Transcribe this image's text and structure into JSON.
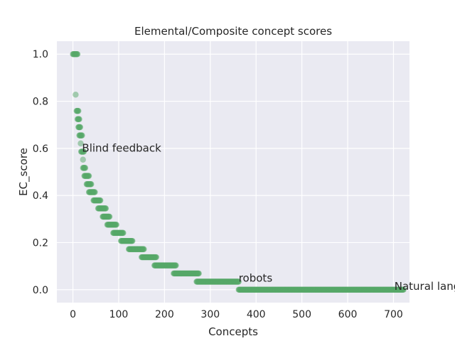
{
  "chart_data": {
    "type": "scatter",
    "title": "Elemental/Composite concept scores",
    "xlabel": "Concepts",
    "ylabel": "EC_score",
    "xlim": [
      -35,
      735
    ],
    "ylim": [
      -0.055,
      1.055
    ],
    "xticks": [
      0,
      100,
      200,
      300,
      400,
      500,
      600,
      700
    ],
    "yticks": [
      0.0,
      0.2,
      0.4,
      0.6,
      0.8,
      1.0
    ],
    "ytick_labels": [
      "0.0",
      "0.2",
      "0.4",
      "0.6",
      "0.8",
      "1.0"
    ],
    "grid": true,
    "background": "#eaeaf2",
    "point_color": "#55a868",
    "point_alpha": 0.5,
    "groups": [
      {
        "x_start": 0,
        "x_end": 10,
        "y": 1.0
      },
      {
        "x_start": 6,
        "x_end": 6,
        "y": 0.828
      },
      {
        "x_start": 8,
        "x_end": 12,
        "y": 0.759
      },
      {
        "x_start": 10,
        "x_end": 14,
        "y": 0.724
      },
      {
        "x_start": 12,
        "x_end": 16,
        "y": 0.69
      },
      {
        "x_start": 14,
        "x_end": 20,
        "y": 0.655
      },
      {
        "x_start": 17,
        "x_end": 17,
        "y": 0.621
      },
      {
        "x_start": 18,
        "x_end": 24,
        "y": 0.586
      },
      {
        "x_start": 22,
        "x_end": 22,
        "y": 0.552
      },
      {
        "x_start": 22,
        "x_end": 27,
        "y": 0.517
      },
      {
        "x_start": 25,
        "x_end": 35,
        "y": 0.483
      },
      {
        "x_start": 30,
        "x_end": 40,
        "y": 0.448
      },
      {
        "x_start": 35,
        "x_end": 48,
        "y": 0.414
      },
      {
        "x_start": 45,
        "x_end": 60,
        "y": 0.379
      },
      {
        "x_start": 55,
        "x_end": 72,
        "y": 0.345
      },
      {
        "x_start": 65,
        "x_end": 80,
        "y": 0.31
      },
      {
        "x_start": 75,
        "x_end": 95,
        "y": 0.276
      },
      {
        "x_start": 88,
        "x_end": 110,
        "y": 0.241
      },
      {
        "x_start": 105,
        "x_end": 130,
        "y": 0.207
      },
      {
        "x_start": 122,
        "x_end": 155,
        "y": 0.172
      },
      {
        "x_start": 150,
        "x_end": 182,
        "y": 0.138
      },
      {
        "x_start": 178,
        "x_end": 225,
        "y": 0.103
      },
      {
        "x_start": 220,
        "x_end": 275,
        "y": 0.069
      },
      {
        "x_start": 270,
        "x_end": 362,
        "y": 0.034
      },
      {
        "x_start": 362,
        "x_end": 722,
        "y": 0.0
      }
    ],
    "annotations": [
      {
        "text": "Blind feedback",
        "x": 20,
        "y": 0.586
      },
      {
        "text": "robots",
        "x": 362,
        "y": 0.034
      },
      {
        "text": "Natural langu",
        "x": 702,
        "y": 0.0
      }
    ]
  }
}
